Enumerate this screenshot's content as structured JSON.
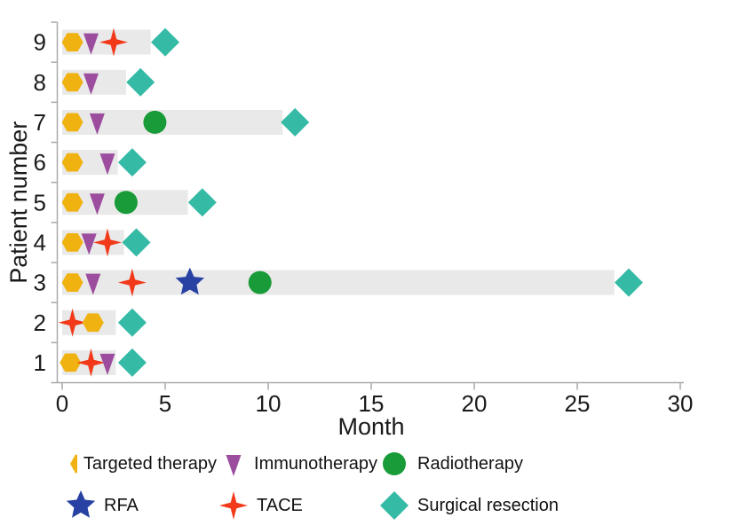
{
  "figure": {
    "kind": "swimmer plot of treatments per patient"
  },
  "axes": {
    "x": {
      "label": "Month",
      "min": 0,
      "max": 30,
      "ticks": [
        0,
        5,
        10,
        15,
        20,
        25,
        30
      ]
    },
    "y": {
      "label": "Patient number",
      "tick_labels": [
        9,
        8,
        7,
        6,
        5,
        4,
        3,
        2,
        1
      ]
    }
  },
  "colors": {
    "bar": "#E9E9E9",
    "axis": "#A9A9A9",
    "text": "#1A1A1A"
  },
  "legend": {
    "items": [
      {
        "label": "Targeted therapy",
        "marker": "hexagon",
        "color": "#F0B211"
      },
      {
        "label": "Immunotherapy",
        "marker": "triangle_down",
        "color": "#9C4D9E"
      },
      {
        "label": "Radiotherapy",
        "marker": "circle",
        "color": "#189B38"
      },
      {
        "label": "RFA",
        "marker": "star5",
        "color": "#2842A4"
      },
      {
        "label": "TACE",
        "marker": "star4",
        "color": "#F23A1A"
      },
      {
        "label": "Surgical resection",
        "marker": "diamond",
        "color": "#34BAA5"
      }
    ]
  },
  "chart_data": {
    "type": "swimmer",
    "title": "",
    "xlabel": "Month",
    "ylabel": "Patient number",
    "xlim": [
      0,
      30
    ],
    "grid": false,
    "legend_position": "bottom",
    "bar_meaning": "treatment duration (months)",
    "patients": [
      {
        "patient": 9,
        "bar_months": 4.3,
        "events": [
          {
            "treatment": "Targeted therapy",
            "month": 0.5
          },
          {
            "treatment": "Immunotherapy",
            "month": 1.4
          },
          {
            "treatment": "TACE",
            "month": 2.5
          },
          {
            "treatment": "Surgical resection",
            "month": 5.0
          }
        ]
      },
      {
        "patient": 8,
        "bar_months": 3.1,
        "events": [
          {
            "treatment": "Targeted therapy",
            "month": 0.5
          },
          {
            "treatment": "Immunotherapy",
            "month": 1.4
          },
          {
            "treatment": "Surgical resection",
            "month": 3.8
          }
        ]
      },
      {
        "patient": 7,
        "bar_months": 10.7,
        "events": [
          {
            "treatment": "Targeted therapy",
            "month": 0.5
          },
          {
            "treatment": "Immunotherapy",
            "month": 1.7
          },
          {
            "treatment": "Radiotherapy",
            "month": 4.5
          },
          {
            "treatment": "Surgical resection",
            "month": 11.3
          }
        ]
      },
      {
        "patient": 6,
        "bar_months": 2.7,
        "events": [
          {
            "treatment": "Targeted therapy",
            "month": 0.5
          },
          {
            "treatment": "Immunotherapy",
            "month": 2.2
          },
          {
            "treatment": "Surgical resection",
            "month": 3.4
          }
        ]
      },
      {
        "patient": 5,
        "bar_months": 6.1,
        "events": [
          {
            "treatment": "Targeted therapy",
            "month": 0.5
          },
          {
            "treatment": "Immunotherapy",
            "month": 1.7
          },
          {
            "treatment": "Radiotherapy",
            "month": 3.1
          },
          {
            "treatment": "Surgical resection",
            "month": 6.8
          }
        ]
      },
      {
        "patient": 4,
        "bar_months": 3.0,
        "events": [
          {
            "treatment": "Targeted therapy",
            "month": 0.5
          },
          {
            "treatment": "Immunotherapy",
            "month": 1.3
          },
          {
            "treatment": "TACE",
            "month": 2.2
          },
          {
            "treatment": "Surgical resection",
            "month": 3.6
          }
        ]
      },
      {
        "patient": 3,
        "bar_months": 26.8,
        "events": [
          {
            "treatment": "Targeted therapy",
            "month": 0.5
          },
          {
            "treatment": "Immunotherapy",
            "month": 1.5
          },
          {
            "treatment": "TACE",
            "month": 3.4
          },
          {
            "treatment": "RFA",
            "month": 6.2
          },
          {
            "treatment": "Radiotherapy",
            "month": 9.6
          },
          {
            "treatment": "Surgical resection",
            "month": 27.5
          }
        ]
      },
      {
        "patient": 2,
        "bar_months": 2.6,
        "events": [
          {
            "treatment": "TACE",
            "month": 0.5
          },
          {
            "treatment": "Targeted therapy",
            "month": 1.5
          },
          {
            "treatment": "Surgical resection",
            "month": 3.4
          }
        ]
      },
      {
        "patient": 1,
        "bar_months": 2.6,
        "events": [
          {
            "treatment": "Targeted therapy",
            "month": 0.4
          },
          {
            "treatment": "TACE",
            "month": 1.4
          },
          {
            "treatment": "Immunotherapy",
            "month": 2.2
          },
          {
            "treatment": "Surgical resection",
            "month": 3.4
          }
        ]
      }
    ]
  }
}
